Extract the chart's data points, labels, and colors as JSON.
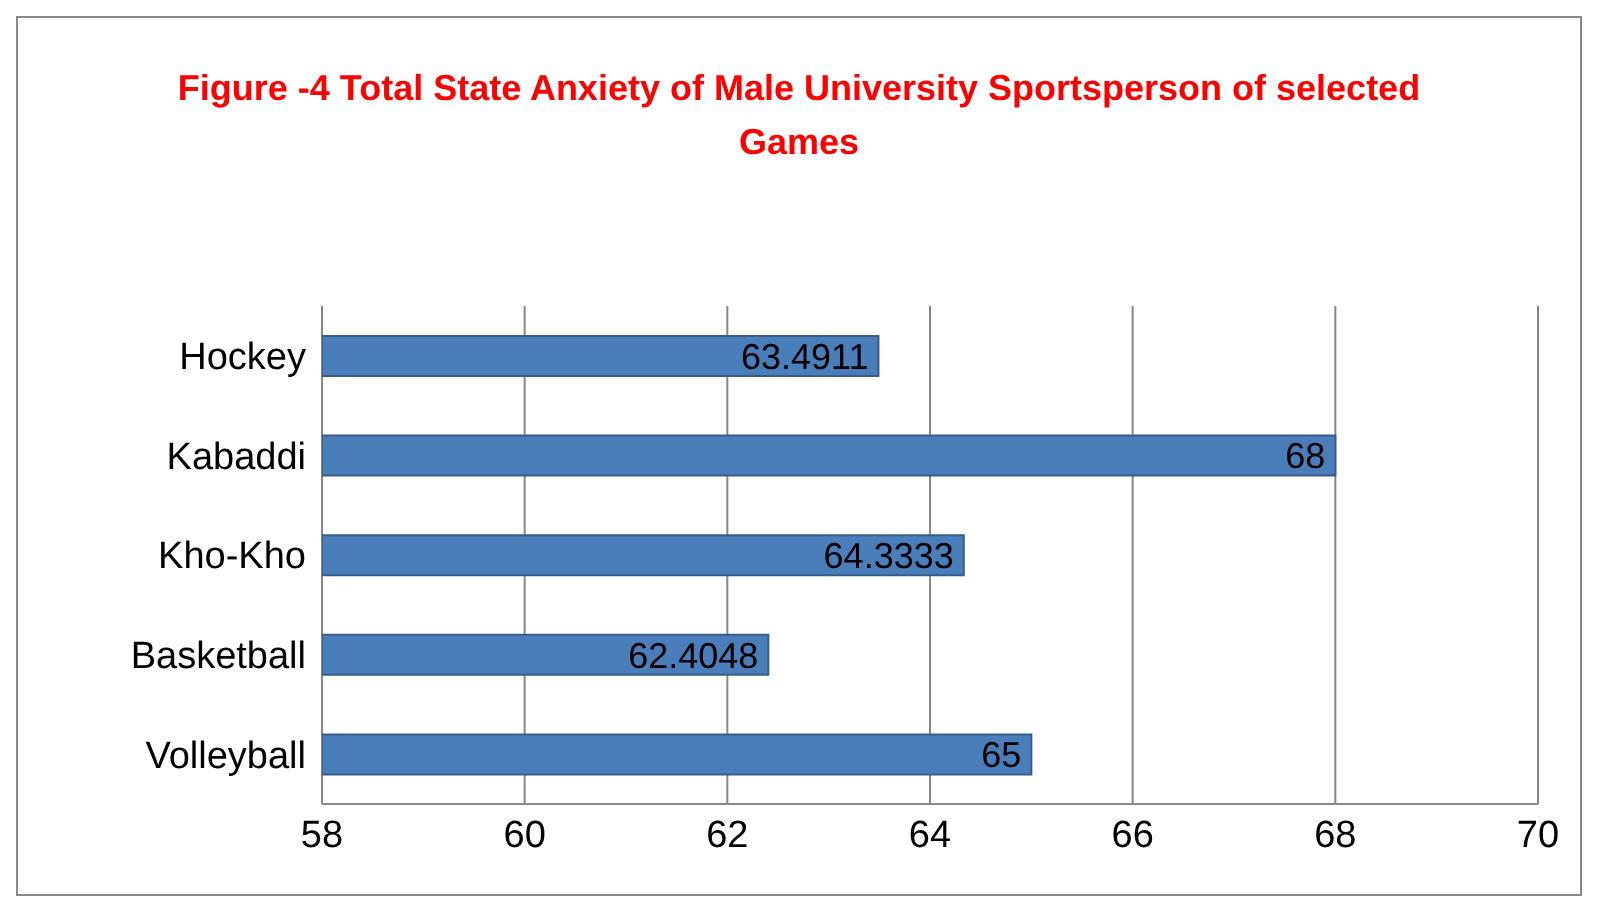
{
  "chart_data": {
    "type": "bar",
    "orientation": "horizontal",
    "title": "Figure -4 Total State Anxiety of Male University Sportsperson of selected Games",
    "categories": [
      "Hockey",
      "Kabaddi",
      "Kho-Kho",
      "Basketball",
      "Volleyball"
    ],
    "values": [
      63.4911,
      68,
      64.3333,
      62.4048,
      65
    ],
    "color": "#4a7ebb",
    "xlim": [
      58,
      70
    ],
    "xticks": [
      58,
      60,
      62,
      64,
      66,
      68,
      70
    ],
    "grid": "x",
    "data_labels": true,
    "legend": false
  }
}
